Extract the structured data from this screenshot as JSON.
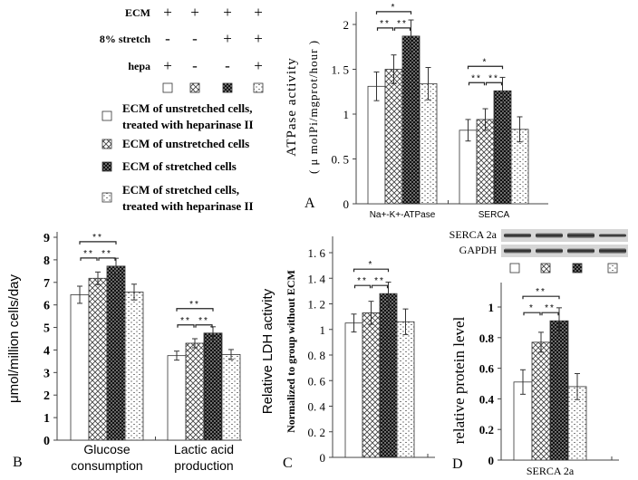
{
  "legend_table": {
    "rows": [
      {
        "label": "ECM",
        "values": [
          "+",
          "+",
          "+",
          "+"
        ]
      },
      {
        "label": "8% stretch",
        "values": [
          "-",
          "-",
          "+",
          "+"
        ]
      },
      {
        "label": "hepa",
        "values": [
          "+",
          "-",
          "-",
          "+"
        ]
      }
    ],
    "items": [
      {
        "pattern": "white",
        "lines": [
          "ECM of unstretched cells,",
          "treated with heparinase II"
        ]
      },
      {
        "pattern": "crosshatch",
        "lines": [
          "ECM of unstretched cells"
        ]
      },
      {
        "pattern": "dark-dots",
        "lines": [
          "ECM of  stretched cells"
        ]
      },
      {
        "pattern": "light-dash",
        "lines": [
          "ECM of  stretched cells,",
          "treated with heparinase II"
        ]
      }
    ]
  },
  "blot": {
    "rows": [
      "SERCA 2a",
      "GAPDH"
    ]
  },
  "chart_data": [
    {
      "panel": "A",
      "type": "bar",
      "ylabel": [
        "ATPase activity",
        "( μ molPi/mgprot/hour )"
      ],
      "ylim": [
        0,
        2
      ],
      "yticks": [
        "0",
        "0. 5",
        "1",
        "1. 5",
        "2"
      ],
      "ytick_values": [
        0,
        0.5,
        1,
        1.5,
        2
      ],
      "categories": [
        [
          "Na+-K+-ATPase"
        ],
        [
          "SERCA"
        ]
      ],
      "values": [
        [
          1.31,
          1.5,
          1.87,
          1.34
        ],
        [
          0.82,
          0.94,
          1.26,
          0.83
        ]
      ],
      "errors": [
        [
          0.16,
          0.16,
          0.18,
          0.18
        ],
        [
          0.12,
          0.12,
          0.15,
          0.14
        ]
      ],
      "significance": [
        [
          [
            1,
            2,
            "**"
          ],
          [
            2,
            3,
            "**"
          ],
          [
            1,
            3,
            "*"
          ]
        ],
        [
          [
            1,
            2,
            "**"
          ],
          [
            2,
            3,
            "**"
          ],
          [
            1,
            3,
            "*"
          ]
        ]
      ]
    },
    {
      "panel": "B",
      "type": "bar",
      "ylabel": [
        "μmol/million cells/day"
      ],
      "ylim": [
        0,
        9
      ],
      "yticks": [
        "0",
        "1",
        "2",
        "3",
        "4",
        "5",
        "6",
        "7",
        "8",
        "9"
      ],
      "ytick_values": [
        0,
        1,
        2,
        3,
        4,
        5,
        6,
        7,
        8,
        9
      ],
      "categories": [
        [
          "Glucose",
          "consumption"
        ],
        [
          "Lactic acid",
          "production"
        ]
      ],
      "values": [
        [
          6.45,
          7.18,
          7.72,
          6.57
        ],
        [
          3.75,
          4.3,
          4.75,
          3.8
        ]
      ],
      "errors": [
        [
          0.38,
          0.28,
          0.35,
          0.35
        ],
        [
          0.2,
          0.2,
          0.28,
          0.22
        ]
      ],
      "significance": [
        [
          [
            1,
            2,
            "**"
          ],
          [
            2,
            3,
            "**"
          ],
          [
            1,
            3,
            "**"
          ]
        ],
        [
          [
            1,
            2,
            "**"
          ],
          [
            2,
            3,
            "**"
          ],
          [
            1,
            3,
            "**"
          ]
        ]
      ]
    },
    {
      "panel": "C",
      "type": "bar",
      "ylabel": [
        "Relative LDH activity",
        "Normalized to group without ECM"
      ],
      "ylim": [
        0,
        1.6
      ],
      "yticks": [
        "0",
        "0. 2",
        "0. 4",
        "0. 6",
        "0. 8",
        "1",
        "1. 2",
        "1. 4",
        "1. 6"
      ],
      "ytick_values": [
        0,
        0.2,
        0.4,
        0.6,
        0.8,
        1,
        1.2,
        1.4,
        1.6
      ],
      "categories": [
        [
          ""
        ]
      ],
      "values": [
        [
          1.05,
          1.13,
          1.28,
          1.06
        ]
      ],
      "errors": [
        [
          0.07,
          0.09,
          0.09,
          0.1
        ]
      ],
      "significance": [
        [
          [
            1,
            2,
            "**"
          ],
          [
            2,
            3,
            "**"
          ],
          [
            1,
            3,
            "*"
          ]
        ]
      ]
    },
    {
      "panel": "D",
      "type": "bar",
      "ylabel": [
        "relative protein level"
      ],
      "ylim": [
        0,
        1
      ],
      "yticks": [
        "0",
        "0.2",
        "0.4",
        "0.6",
        "0.8",
        "1"
      ],
      "ytick_values": [
        0,
        0.2,
        0.4,
        0.6,
        0.8,
        1
      ],
      "categories": [
        [
          "SERCA 2a"
        ]
      ],
      "values": [
        [
          0.51,
          0.77,
          0.91,
          0.48
        ]
      ],
      "errors": [
        [
          0.08,
          0.065,
          0.085,
          0.085
        ]
      ],
      "significance": [
        [
          [
            1,
            2,
            "*"
          ],
          [
            2,
            3,
            "**"
          ],
          [
            1,
            3,
            "**"
          ]
        ]
      ]
    }
  ]
}
